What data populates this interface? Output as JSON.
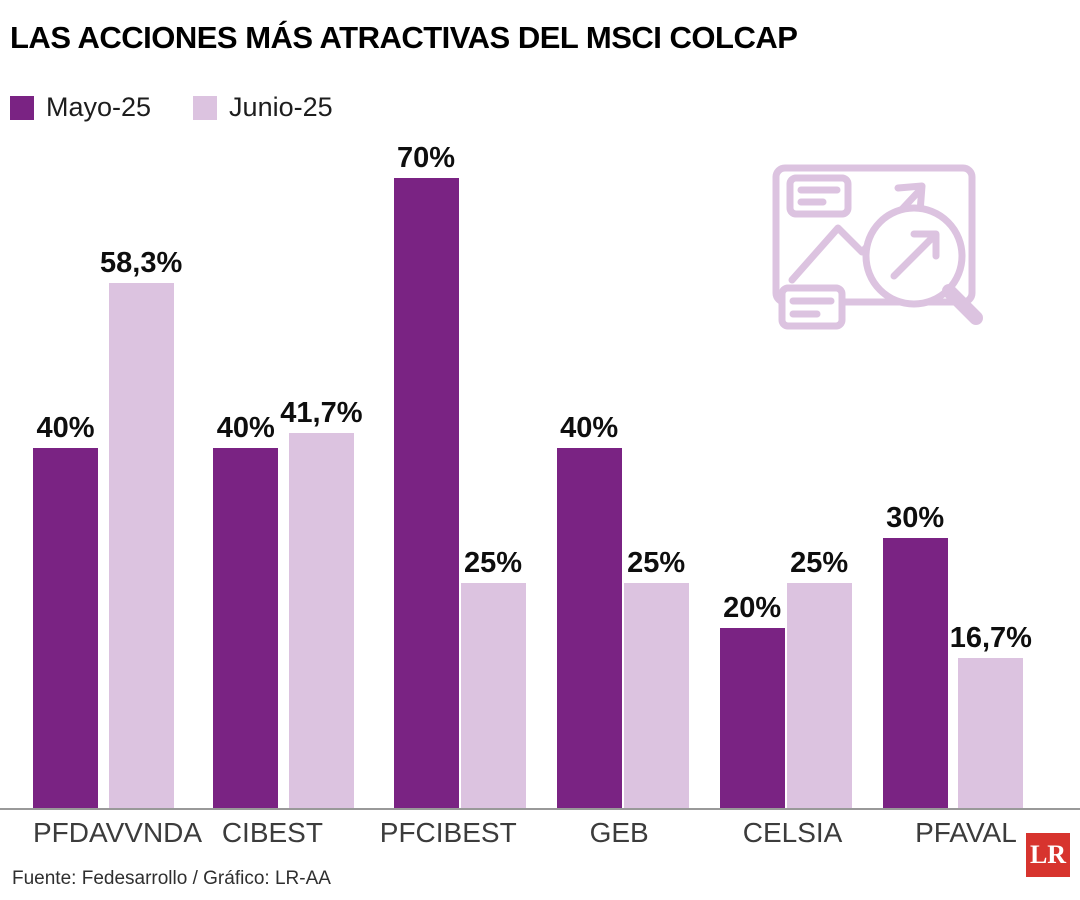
{
  "title": "LAS ACCIONES MÁS ATRACTIVAS DEL MSCI COLCAP",
  "legend": [
    {
      "label": "Mayo-25",
      "color": "#7a2383"
    },
    {
      "label": "Junio-25",
      "color": "#dcc3e0"
    }
  ],
  "colors": {
    "series_mayo": "#7a2383",
    "series_junio": "#dcc3e0",
    "icon": "#dcc3e0",
    "axis": "#999999",
    "logo_background": "#d7342e"
  },
  "chart_data": {
    "type": "bar",
    "categories": [
      "PFDAVVNDA",
      "CIBEST",
      "PFCIBEST",
      "GEB",
      "CELSIA",
      "PFAVAL"
    ],
    "series": [
      {
        "name": "Mayo-25",
        "color": "#7a2383",
        "values": [
          40,
          40,
          70,
          40,
          20,
          30
        ],
        "labels": [
          "40%",
          "40%",
          "70%",
          "40%",
          "20%",
          "30%"
        ]
      },
      {
        "name": "Junio-25",
        "color": "#dcc3e0",
        "values": [
          58.3,
          41.7,
          25,
          25,
          25,
          16.7
        ],
        "labels": [
          "58,3%",
          "41,7%",
          "25%",
          "25%",
          "25%",
          "16,7%"
        ]
      }
    ],
    "ylim": [
      0,
      70
    ],
    "grid": false,
    "value_labels": "above-bars",
    "legend_position": "top-left",
    "icon": "chart-magnifier-icon"
  },
  "footer": {
    "source": "Fuente: Fedesarrollo / Gráfico: LR-AA"
  },
  "logo": {
    "text": "LR",
    "background": "#d7342e"
  }
}
